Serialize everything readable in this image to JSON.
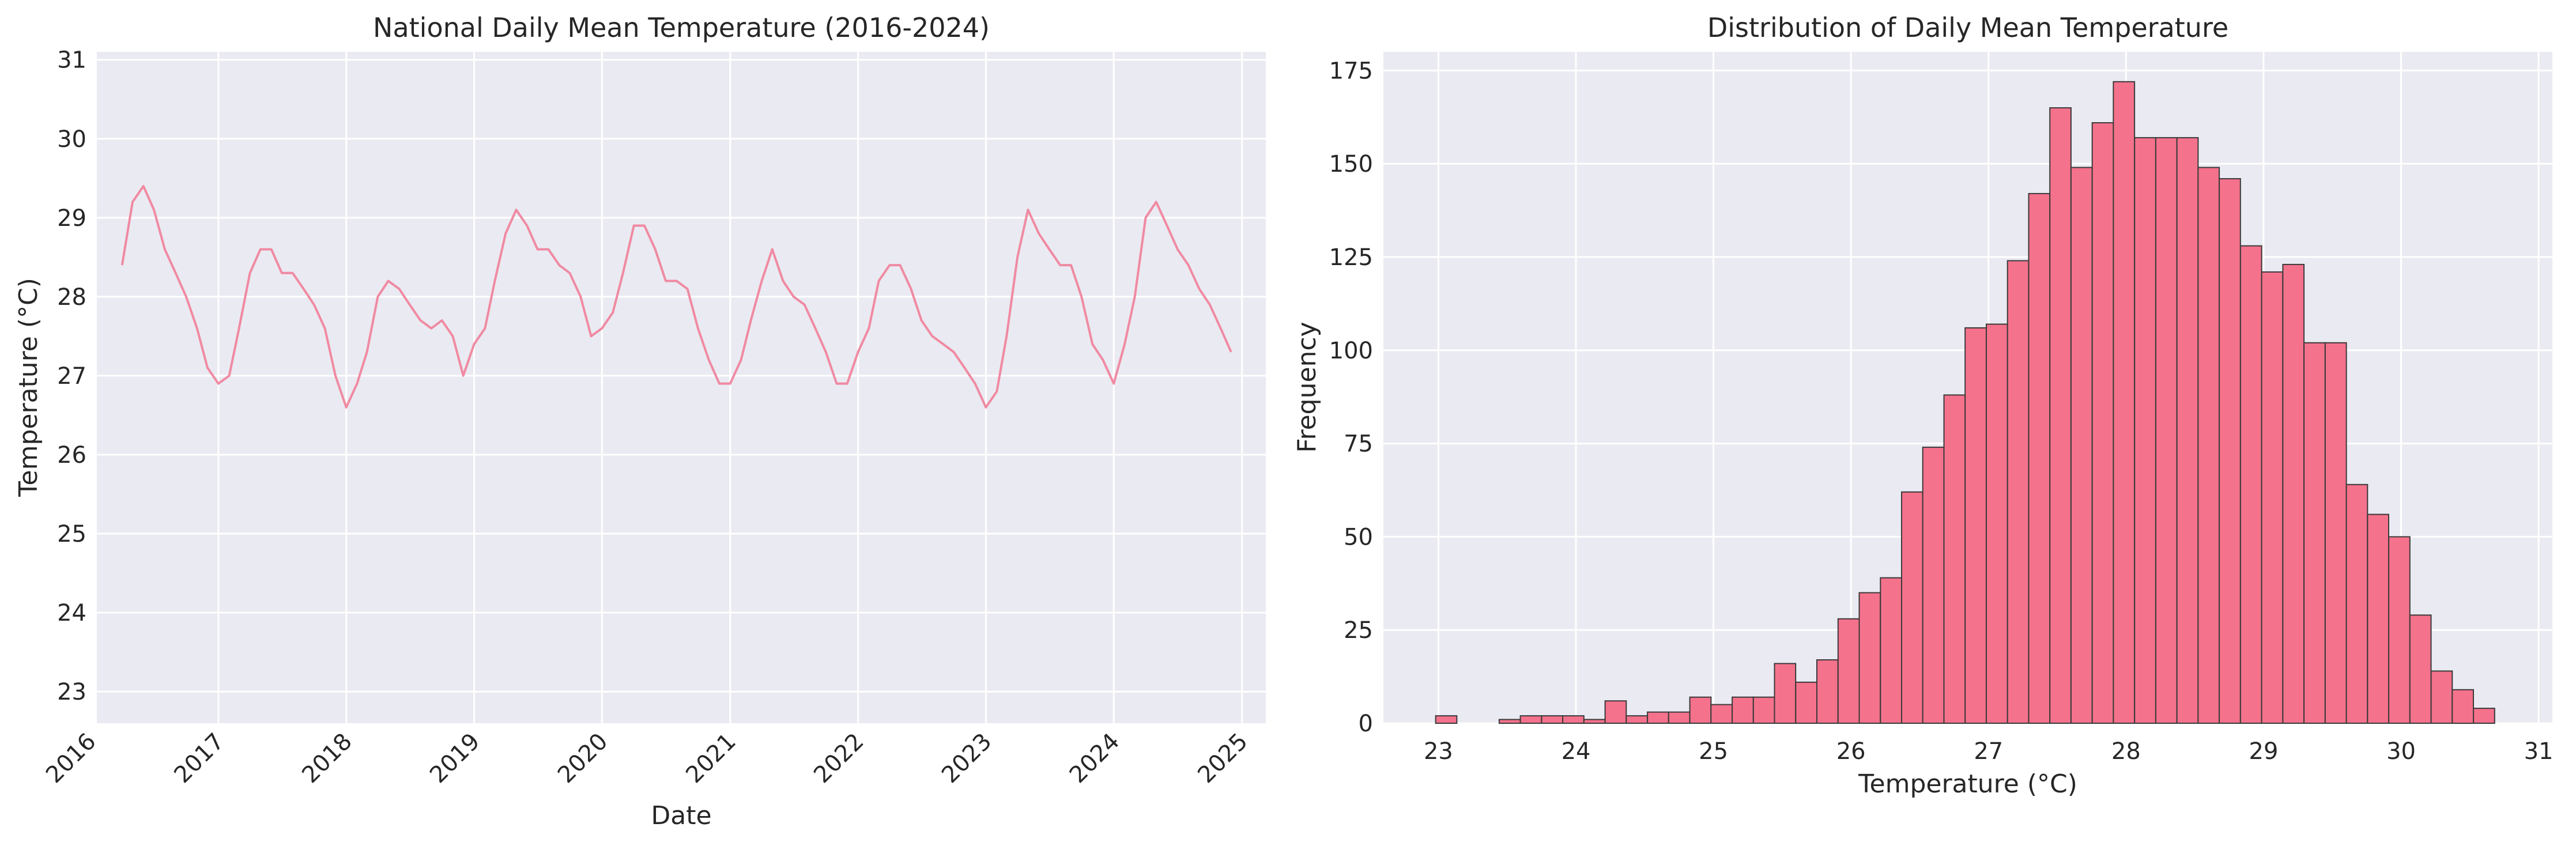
{
  "chart_data": [
    {
      "type": "line",
      "title": "National Daily Mean Temperature (2016-2024)",
      "xlabel": "Date",
      "ylabel": "Temperature (°C)",
      "xlim": [
        "2016-01-20",
        "2025-03-10"
      ],
      "ylim": [
        22.6,
        31.1
      ],
      "x_ticks": [
        "2016",
        "2017",
        "2018",
        "2019",
        "2020",
        "2021",
        "2022",
        "2023",
        "2024",
        "2025"
      ],
      "y_ticks": [
        23,
        24,
        25,
        26,
        27,
        28,
        29,
        30,
        31
      ],
      "grid": true,
      "series": [
        {
          "color": "#f08aa2",
          "x": [
            "2016-04-01",
            "2016-05-01",
            "2016-06-01",
            "2016-07-01",
            "2016-08-01",
            "2016-09-01",
            "2016-10-01",
            "2016-11-01",
            "2016-12-01",
            "2017-01-01",
            "2017-02-01",
            "2017-03-01",
            "2017-04-01",
            "2017-05-01",
            "2017-06-01",
            "2017-07-01",
            "2017-08-01",
            "2017-09-01",
            "2017-10-01",
            "2017-11-01",
            "2017-12-01",
            "2018-01-01",
            "2018-02-01",
            "2018-03-01",
            "2018-04-01",
            "2018-05-01",
            "2018-06-01",
            "2018-07-01",
            "2018-08-01",
            "2018-09-01",
            "2018-10-01",
            "2018-11-01",
            "2018-12-01",
            "2019-01-01",
            "2019-02-01",
            "2019-03-01",
            "2019-04-01",
            "2019-05-01",
            "2019-06-01",
            "2019-07-01",
            "2019-08-01",
            "2019-09-01",
            "2019-10-01",
            "2019-11-01",
            "2019-12-01",
            "2020-01-01",
            "2020-02-01",
            "2020-03-01",
            "2020-04-01",
            "2020-05-01",
            "2020-06-01",
            "2020-07-01",
            "2020-08-01",
            "2020-09-01",
            "2020-10-01",
            "2020-11-01",
            "2020-12-01",
            "2021-01-01",
            "2021-02-01",
            "2021-03-01",
            "2021-04-01",
            "2021-05-01",
            "2021-06-01",
            "2021-07-01",
            "2021-08-01",
            "2021-09-01",
            "2021-10-01",
            "2021-11-01",
            "2021-12-01",
            "2022-01-01",
            "2022-02-01",
            "2022-03-01",
            "2022-04-01",
            "2022-05-01",
            "2022-06-01",
            "2022-07-01",
            "2022-08-01",
            "2022-09-01",
            "2022-10-01",
            "2022-11-01",
            "2022-12-01",
            "2023-01-01",
            "2023-02-01",
            "2023-03-01",
            "2023-04-01",
            "2023-05-01",
            "2023-06-01",
            "2023-07-01",
            "2023-08-01",
            "2023-09-01",
            "2023-10-01",
            "2023-11-01",
            "2023-12-01",
            "2024-01-01",
            "2024-02-01",
            "2024-03-01",
            "2024-04-01",
            "2024-05-01",
            "2024-06-01",
            "2024-07-01",
            "2024-08-01",
            "2024-09-01",
            "2024-10-01",
            "2024-11-01",
            "2024-12-01"
          ],
          "y": [
            28.4,
            29.2,
            29.4,
            29.1,
            28.6,
            28.3,
            28.0,
            27.6,
            27.1,
            26.9,
            27.0,
            27.6,
            28.3,
            28.6,
            28.6,
            28.3,
            28.3,
            28.1,
            27.9,
            27.6,
            27.0,
            26.6,
            26.9,
            27.3,
            28.0,
            28.2,
            28.1,
            27.9,
            27.7,
            27.6,
            27.7,
            27.5,
            27.0,
            27.4,
            27.6,
            28.2,
            28.8,
            29.1,
            28.9,
            28.6,
            28.6,
            28.4,
            28.3,
            28.0,
            27.5,
            27.6,
            27.8,
            28.3,
            28.9,
            28.9,
            28.6,
            28.2,
            28.2,
            28.1,
            27.6,
            27.2,
            26.9,
            26.9,
            27.2,
            27.7,
            28.2,
            28.6,
            28.2,
            28.0,
            27.9,
            27.6,
            27.3,
            26.9,
            26.9,
            27.3,
            27.6,
            28.2,
            28.4,
            28.4,
            28.1,
            27.7,
            27.5,
            27.4,
            27.3,
            27.1,
            26.9,
            26.6,
            26.8,
            27.5,
            28.5,
            29.1,
            28.8,
            28.6,
            28.4,
            28.4,
            28.0,
            27.4,
            27.2,
            26.9,
            27.4,
            28.0,
            29.0,
            29.2,
            28.9,
            28.6,
            28.4,
            28.1,
            27.9,
            27.6,
            27.3
          ]
        }
      ]
    },
    {
      "type": "bar",
      "title": "Distribution of Daily Mean Temperature",
      "xlabel": "Temperature (°C)",
      "ylabel": "Frequency",
      "xlim": [
        22.6,
        31.1
      ],
      "ylim": [
        0,
        180
      ],
      "x_ticks": [
        23,
        24,
        25,
        26,
        27,
        28,
        29,
        30,
        31
      ],
      "y_ticks": [
        0,
        25,
        50,
        75,
        100,
        125,
        150,
        175
      ],
      "grid": true,
      "bar_color": "#f5728c",
      "bin_start": 22.98,
      "bin_width": 0.154,
      "values": [
        2,
        0,
        0,
        1,
        2,
        2,
        2,
        1,
        6,
        2,
        3,
        3,
        7,
        5,
        7,
        7,
        16,
        11,
        17,
        28,
        35,
        39,
        62,
        74,
        88,
        106,
        107,
        124,
        142,
        165,
        149,
        161,
        172,
        157,
        157,
        157,
        149,
        146,
        128,
        121,
        123,
        102,
        102,
        64,
        56,
        50,
        29,
        14,
        9,
        4
      ]
    }
  ]
}
